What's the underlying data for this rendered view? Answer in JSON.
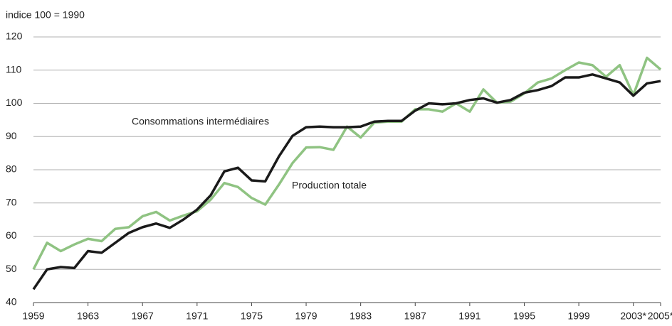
{
  "chart_data": {
    "type": "line",
    "subtitle": "indice 100 = 1990",
    "x": [
      1959,
      1960,
      1961,
      1962,
      1963,
      1964,
      1965,
      1966,
      1967,
      1968,
      1969,
      1970,
      1971,
      1972,
      1973,
      1974,
      1975,
      1976,
      1977,
      1978,
      1979,
      1980,
      1981,
      1982,
      1983,
      1984,
      1985,
      1986,
      1987,
      1988,
      1989,
      1990,
      1991,
      1992,
      1993,
      1994,
      1995,
      1996,
      1997,
      1998,
      1999,
      2000,
      2001,
      2002,
      2003,
      2004,
      2005
    ],
    "series": [
      {
        "name": "Production totale",
        "color": "#8fc382",
        "values": [
          50,
          58,
          55.5,
          57.5,
          59.2,
          58.5,
          62.2,
          62.7,
          66,
          67.3,
          64.7,
          66.2,
          67.5,
          71,
          76,
          74.8,
          71.5,
          69.5,
          75.5,
          82,
          86.7,
          86.8,
          86,
          93,
          89.7,
          94.2,
          94.5,
          94.5,
          98.2,
          98.2,
          97.5,
          100,
          97.5,
          104.2,
          100.2,
          100.5,
          103,
          106.3,
          107.5,
          110,
          112.3,
          111.5,
          108,
          111.5,
          102.5,
          113.7,
          110.2
        ]
      },
      {
        "name": "Consommations intermédiaires",
        "color": "#1a1a1a",
        "values": [
          44,
          50,
          50.7,
          50.4,
          55.5,
          55,
          58,
          61,
          62.7,
          63.8,
          62.5,
          65,
          68,
          72.3,
          79.5,
          80.6,
          76.8,
          76.5,
          84,
          90.2,
          92.8,
          93,
          92.8,
          92.8,
          93,
          94.5,
          94.7,
          94.7,
          97.8,
          100,
          99.7,
          100,
          101,
          101.5,
          100.2,
          101,
          103.2,
          104,
          105.2,
          107.8,
          107.8,
          108.7,
          107.5,
          106.3,
          102.3,
          106,
          106.7
        ]
      }
    ],
    "xlim": [
      1959,
      2005
    ],
    "xticks": [
      1959,
      1963,
      1967,
      1971,
      1975,
      1979,
      1983,
      1987,
      1991,
      1995,
      1999,
      {
        "value": 2003,
        "label": "2003*"
      },
      {
        "value": 2005,
        "label": "2005*"
      }
    ],
    "ylim": [
      40,
      120
    ],
    "yticks": [
      40,
      50,
      60,
      70,
      80,
      90,
      100,
      110,
      120
    ],
    "grid": true
  }
}
